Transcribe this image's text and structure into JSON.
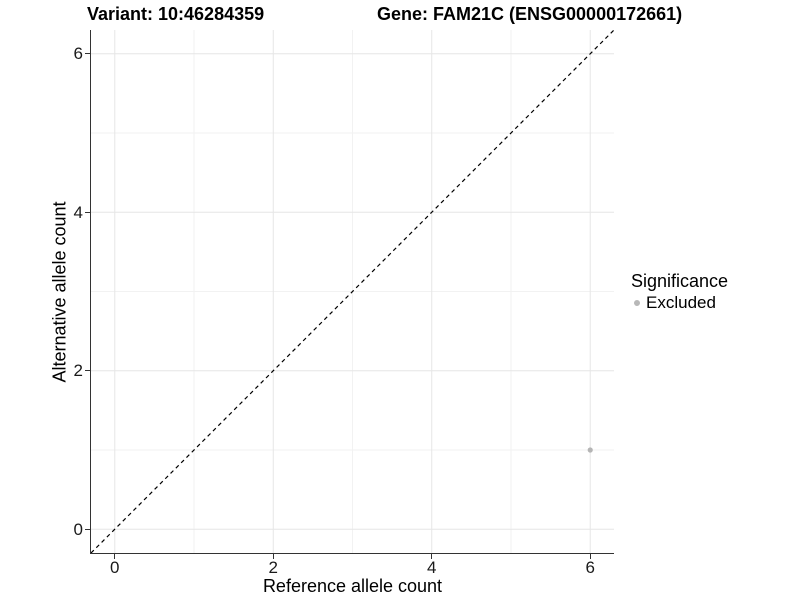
{
  "plot": {
    "title_left": "Variant: 10:46284359",
    "title_right": "Gene: FAM21C (ENSG00000172661)"
  },
  "chart_data": {
    "type": "scatter",
    "title": "Variant: 10:46284359   Gene: FAM21C (ENSG00000172661)",
    "xlabel": "Reference allele count",
    "ylabel": "Alternative allele count",
    "xlim": [
      -0.3,
      6.3
    ],
    "ylim": [
      -0.3,
      6.3
    ],
    "x_major_ticks": [
      0,
      2,
      4,
      6
    ],
    "y_major_ticks": [
      0,
      2,
      4,
      6
    ],
    "x_minor_ticks": [
      1,
      3,
      5
    ],
    "y_minor_ticks": [
      1,
      3,
      5
    ],
    "grid": "on",
    "identity_line": {
      "slope": 1,
      "intercept": 0,
      "style": "dashed",
      "color": "#000000"
    },
    "series": [
      {
        "name": "Excluded",
        "color": "#b5b5b5",
        "points": [
          [
            6,
            1
          ]
        ]
      }
    ],
    "legend": {
      "title": "Significance",
      "position": "right",
      "entries": [
        {
          "label": "Excluded",
          "color": "#b8b8b8"
        }
      ]
    }
  },
  "colors": {
    "axis": "#333333",
    "grid_major": "#e6e6e6",
    "grid_minor": "#f2f2f2",
    "background": "#ffffff",
    "tick_text": "#1a1a1a"
  }
}
